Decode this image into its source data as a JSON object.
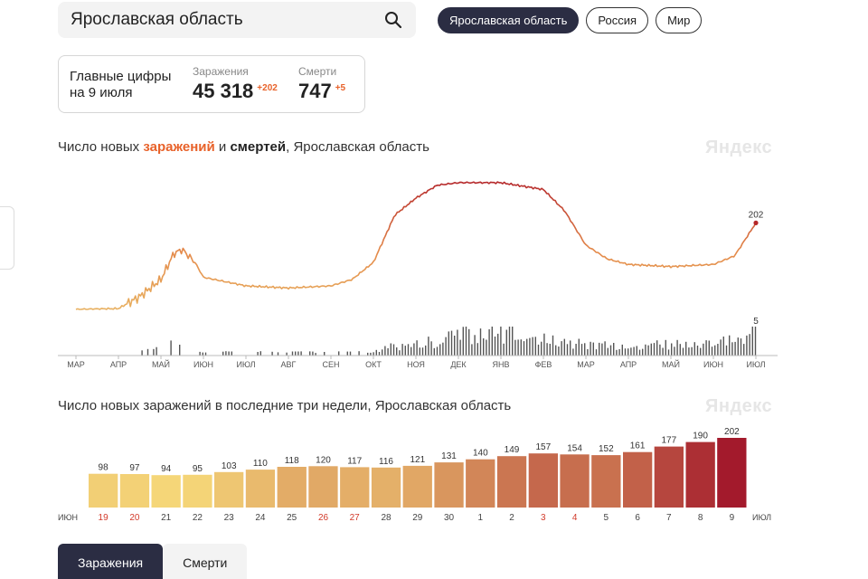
{
  "search": {
    "value": "Ярославская область",
    "icon": "search-icon"
  },
  "region_tabs": [
    {
      "label": "Ярославская область",
      "active": true
    },
    {
      "label": "Россия",
      "active": false
    },
    {
      "label": "Мир",
      "active": false
    }
  ],
  "summary": {
    "date_label": "Главные цифры на 9 июля",
    "infections": {
      "label": "Заражения",
      "value": "45 318",
      "delta": "+202"
    },
    "deaths": {
      "label": "Смерти",
      "value": "747",
      "delta": "+5"
    }
  },
  "chart1": {
    "title_prefix": "Число новых ",
    "title_infections": "заражений",
    "title_and": " и ",
    "title_deaths": "смертей",
    "title_suffix": ", Ярославская область",
    "watermark": "Яндекс",
    "last_infections_label": "202",
    "last_deaths_label": "5"
  },
  "chart2": {
    "title": "Число новых заражений в последние три недели, Ярославская область",
    "watermark": "Яндекс"
  },
  "bottom_tabs": [
    {
      "label": "Заражения",
      "active": true
    },
    {
      "label": "Смерти",
      "active": false
    }
  ],
  "colors": {
    "accent_orange": "#e8622a",
    "dark_navy": "#2b2d43",
    "line_low": "#e8b060",
    "line_high": "#b5282a",
    "death_bars": "#555555",
    "weekend_red": "#d23a2a"
  },
  "chart_data": [
    {
      "type": "line",
      "x_tick_labels": [
        "МАР",
        "АПР",
        "МАЙ",
        "ИЮН",
        "ИЮЛ",
        "АВГ",
        "СЕН",
        "ОКТ",
        "НОЯ",
        "ДЕК",
        "ЯНВ",
        "ФЕВ",
        "МАР",
        "АПР",
        "МАЙ",
        "ИЮН",
        "ИЮЛ"
      ],
      "series": [
        {
          "name": "заражения",
          "x": [
            0,
            1,
            1.5,
            2,
            2.3,
            2.5,
            2.8,
            3,
            4,
            5,
            6,
            6.5,
            7,
            7.5,
            8,
            8.5,
            9,
            10,
            11,
            11.5,
            12,
            12.5,
            13,
            14,
            15,
            15.5,
            16
          ],
          "values": [
            0,
            2,
            30,
            70,
            130,
            140,
            110,
            75,
            55,
            50,
            55,
            70,
            110,
            220,
            260,
            290,
            296,
            296,
            280,
            230,
            150,
            118,
            105,
            100,
            105,
            125,
            202
          ]
        },
        {
          "name": "смерти",
          "x": [
            1.5,
            2.2,
            3,
            4,
            5,
            6,
            7,
            7.5,
            8,
            8.5,
            9,
            10,
            11,
            12,
            13,
            14,
            15,
            15.5,
            16
          ],
          "values": [
            1,
            4,
            1,
            1,
            1,
            1,
            1,
            2,
            2,
            3,
            4,
            4,
            3,
            2,
            2,
            2,
            3,
            4,
            5
          ]
        }
      ]
    },
    {
      "type": "bar",
      "month_labels": [
        "ИЮН",
        "ИЮЛ"
      ],
      "categories": [
        "19",
        "20",
        "21",
        "22",
        "23",
        "24",
        "25",
        "26",
        "27",
        "28",
        "29",
        "30",
        "1",
        "2",
        "3",
        "4",
        "5",
        "6",
        "7",
        "8",
        "9"
      ],
      "weekend_categories": [
        "19",
        "20",
        "26",
        "27",
        "3",
        "4"
      ],
      "values": [
        98,
        97,
        94,
        95,
        103,
        110,
        118,
        120,
        117,
        116,
        121,
        131,
        140,
        149,
        157,
        154,
        152,
        161,
        177,
        190,
        202
      ]
    }
  ]
}
